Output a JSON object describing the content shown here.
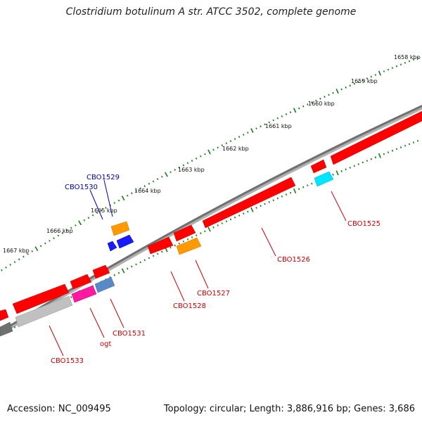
{
  "title": "Clostridium botulinum A str. ATCC 3502, complete genome",
  "accession": "Accession: NC_009495",
  "summary": "Topology: circular; Length: 3,886,916 bp; Genes: 3,686",
  "scale_labels": [
    "1658 kbp",
    "1659 kbp",
    "1660 kbp",
    "1661 kbp",
    "1662 kbp",
    "1663 kbp",
    "1664 kbp",
    "1665 kbp",
    "1666 kbp",
    "1667 kbp"
  ],
  "genes": [
    {
      "name": "CBO1525",
      "color": "#cc0000"
    },
    {
      "name": "CBO1526",
      "color": "#cc0000"
    },
    {
      "name": "CBO1527",
      "color": "#cc0000"
    },
    {
      "name": "CBO1528",
      "color": "#cc0000"
    },
    {
      "name": "CBO1529",
      "color": "#0000aa"
    },
    {
      "name": "CBO1530",
      "color": "#0000aa"
    },
    {
      "name": "CBO1531",
      "color": "#cc0000"
    },
    {
      "name": "ogt",
      "color": "#cc0000"
    },
    {
      "name": "CBO1533",
      "color": "#cc0000"
    }
  ],
  "colors": {
    "backbone": "#808080",
    "tick": "#1a7a1a",
    "cds_red": "#ff0000",
    "orange": "#ff9900",
    "blue": "#1a1aff",
    "cyan": "#00e5ff",
    "magenta": "#ff1aa0",
    "steelblue": "#5a8ac6",
    "gray": "#c0c0c0",
    "darkgray": "#707070"
  }
}
